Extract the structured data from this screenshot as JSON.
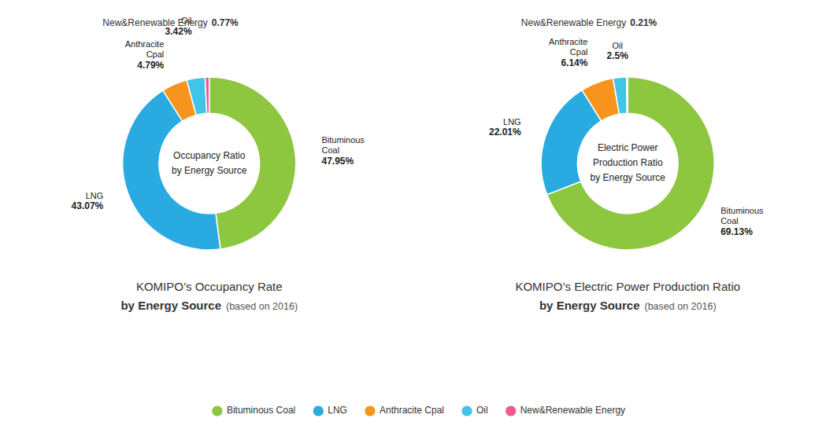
{
  "chart_data": [
    {
      "type": "donut",
      "title": "KOMIPO’s Occupancy Rate",
      "subtitle": [
        "by Energy Source",
        "(based on 2016)"
      ],
      "center_text": "Occupancy Ratio\nby Energy Source",
      "annotation": "New&Renewable Energy",
      "categories": [
        "Bituminous\nCoal",
        "LNG",
        "Anthracite\nCpal",
        "Oil",
        null
      ],
      "values": [
        47.95,
        43.07,
        4.79,
        3.42,
        0.77
      ],
      "value_labels": [
        "47.95%",
        "43.07%",
        "4.79%",
        "3.42%",
        "0.77%"
      ],
      "data_labels": true,
      "colors": [
        "#8dc63f",
        "#29abe2",
        "#f7941d",
        "#40c4e8",
        "#f05a8c"
      ],
      "legend": "bottom",
      "legend_labels": [
        "Bituminous Coal",
        "LNG",
        "Anthracite Cpal",
        "Oil",
        "New&Renewable Energy"
      ]
    },
    {
      "type": "donut",
      "title": "KOMIPO’s Electric Power Production Ratio",
      "subtitle": [
        "by Energy Source",
        "(based on 2016)"
      ],
      "center_text": "Electric Power\nProduction Ratio\nby Energy Source",
      "annotation": "New&Renewable Energy",
      "categories": [
        "Bituminous\nCoal",
        "LNG",
        "Anthracite\nCpal",
        "Oil",
        null
      ],
      "values": [
        69.13,
        22.01,
        6.14,
        2.5,
        0.21
      ],
      "value_labels": [
        "69.13%",
        "22.01%",
        "6.14%",
        "2.5%",
        "0.21%"
      ],
      "data_labels": true,
      "colors": [
        "#8dc63f",
        "#29abe2",
        "#f7941d",
        "#40c4e8",
        "#f05a8c"
      ]
    }
  ]
}
